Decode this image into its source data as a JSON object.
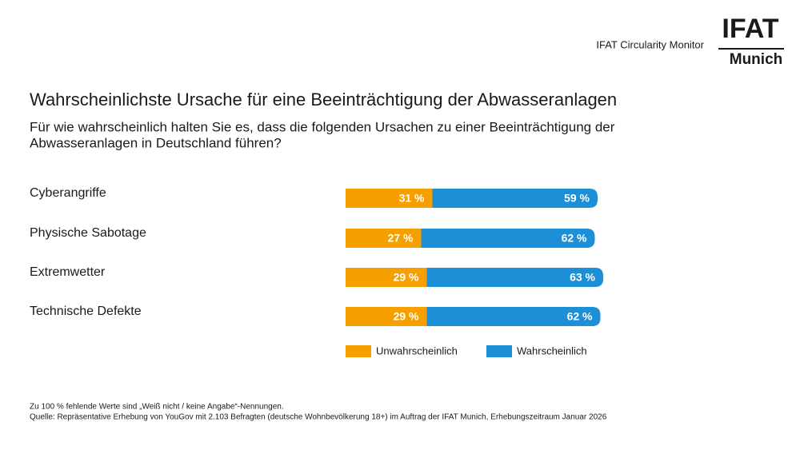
{
  "header": {
    "monitor": "IFAT Circularity Monitor",
    "logo": "IFAT",
    "logo_sub": "Munich"
  },
  "chart_data": {
    "type": "bar",
    "orientation": "horizontal",
    "stacked": true,
    "title": "Wahrscheinlichste Ursache für eine Beeinträchtigung der Abwasseranlagen",
    "subtitle": [
      "Für wie wahrscheinlich halten Sie es, dass die folgenden Ursachen zu einer Beeinträchtigung der",
      "Abwasseranlagen in Deutschland führen?"
    ],
    "categories": [
      "Cyberangriffe",
      "Physische Sabotage",
      "Extremwetter",
      "Technische Defekte"
    ],
    "series": [
      {
        "name": "Unwahrscheinlich",
        "color": "#f5a000",
        "values": [
          31,
          27,
          29,
          29
        ],
        "value_labels": [
          "31 %",
          "27 %",
          "29 %",
          "29 %"
        ]
      },
      {
        "name": "Wahrscheinlich",
        "color": "#1c8fd6",
        "values": [
          59,
          62,
          63,
          62
        ],
        "value_labels": [
          "59 %",
          "62 %",
          "63 %",
          "62 %"
        ]
      }
    ]
  },
  "footnotes": [
    "Zu 100 % fehlende Werte sind „Weiß nicht / keine Angabe“-Nennungen.",
    "Quelle: Repräsentative Erhebung von YouGov mit 2.103 Befragten (deutsche Wohnbevölkerung 18+) im Auftrag der IFAT Munich, Erhebungszeitraum Januar 2026"
  ]
}
